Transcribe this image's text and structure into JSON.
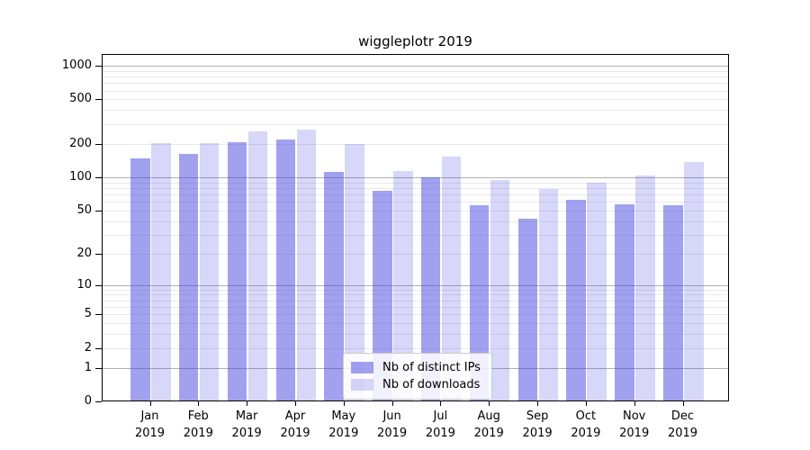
{
  "title": "wiggleplotr 2019",
  "legend": {
    "items": [
      {
        "label": "Nb of distinct IPs",
        "key": "ips"
      },
      {
        "label": "Nb of downloads",
        "key": "downloads"
      }
    ]
  },
  "axes": {
    "y_tick_labels": [
      "1000",
      "500",
      "200",
      "100",
      "50",
      "20",
      "10",
      "5",
      "2",
      "1",
      "0"
    ],
    "x_year_label": "2019"
  },
  "chart_data": {
    "type": "bar",
    "title": "wiggleplotr 2019",
    "categories": [
      "Jan 2019",
      "Feb 2019",
      "Mar 2019",
      "Apr 2019",
      "May 2019",
      "Jun 2019",
      "Jul 2019",
      "Aug 2019",
      "Sep 2019",
      "Oct 2019",
      "Nov 2019",
      "Dec 2019"
    ],
    "months": [
      "Jan",
      "Feb",
      "Mar",
      "Apr",
      "May",
      "Jun",
      "Jul",
      "Aug",
      "Sep",
      "Oct",
      "Nov",
      "Dec"
    ],
    "year": "2019",
    "series": [
      {
        "name": "Nb of distinct IPs",
        "key": "ips",
        "values": [
          148,
          163,
          205,
          217,
          112,
          75,
          100,
          56,
          42,
          62,
          57,
          56
        ]
      },
      {
        "name": "Nb of downloads",
        "key": "downloads",
        "values": [
          204,
          204,
          260,
          268,
          200,
          113,
          152,
          94,
          78,
          89,
          104,
          137
        ]
      }
    ],
    "xlabel": "",
    "ylabel": "",
    "yscale": "log1p",
    "y_major_ticks": [
      0,
      1,
      2,
      5,
      10,
      20,
      50,
      100,
      200,
      500,
      1000
    ],
    "y_major_gridlines": [
      1,
      10,
      100,
      1000
    ],
    "y_minor_gridlines": [
      2,
      3,
      4,
      5,
      6,
      7,
      8,
      9,
      20,
      30,
      40,
      50,
      60,
      70,
      80,
      90,
      200,
      300,
      400,
      500,
      600,
      700,
      800,
      900
    ],
    "ylim": [
      0,
      1270
    ],
    "grid": true,
    "legend_position": "lower center",
    "colors": {
      "ips": "rgba(68,68,226,0.50)",
      "downloads": "rgba(68,68,226,0.21)",
      "ips_hex_approx": "#a2a2ef",
      "downloads_hex_approx": "#d8d8f8",
      "grid_major": "#b0b0b0",
      "grid_minor": "#e9e9e9"
    }
  }
}
